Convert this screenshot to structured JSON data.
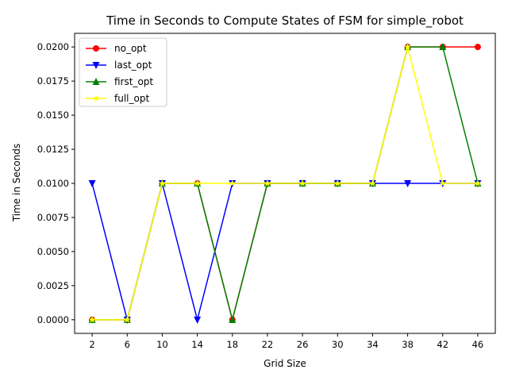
{
  "chart_data": {
    "type": "line",
    "title": "Time in Seconds to Compute States of FSM for simple_robot",
    "xlabel": "Grid Size",
    "ylabel": "Time in Seconds",
    "categories": [
      "2",
      "6",
      "10",
      "14",
      "18",
      "22",
      "26",
      "30",
      "34",
      "38",
      "42",
      "46"
    ],
    "ylim": [
      -0.001,
      0.021
    ],
    "yticks": [
      0.0,
      0.0025,
      0.005,
      0.0075,
      0.01,
      0.0125,
      0.015,
      0.0175,
      0.02
    ],
    "ytick_labels": [
      "0.0000",
      "0.0025",
      "0.0050",
      "0.0075",
      "0.0100",
      "0.0125",
      "0.0150",
      "0.0175",
      "0.0200"
    ],
    "grid": false,
    "legend_position": "upper-left",
    "series": [
      {
        "name": "no_opt",
        "color": "#ff0000",
        "marker": "circle",
        "values": [
          0.0,
          0.0,
          0.01,
          0.01,
          0.0,
          0.01,
          0.01,
          0.01,
          0.01,
          0.02,
          0.02,
          0.02
        ]
      },
      {
        "name": "last_opt",
        "color": "#0000ff",
        "marker": "triangle-down",
        "values": [
          0.01,
          0.0,
          0.01,
          0.0,
          0.01,
          0.01,
          0.01,
          0.01,
          0.01,
          0.01,
          0.01,
          0.01
        ]
      },
      {
        "name": "first_opt",
        "color": "#008000",
        "marker": "triangle-up",
        "values": [
          0.0,
          0.0,
          0.01,
          0.01,
          0.0,
          0.01,
          0.01,
          0.01,
          0.01,
          0.02,
          0.02,
          0.01
        ]
      },
      {
        "name": "full_opt",
        "color": "#ffff00",
        "marker": "star",
        "values": [
          0.0,
          0.0,
          0.01,
          0.01,
          0.01,
          0.01,
          0.01,
          0.01,
          0.01,
          0.02,
          0.01,
          0.01
        ]
      }
    ]
  }
}
